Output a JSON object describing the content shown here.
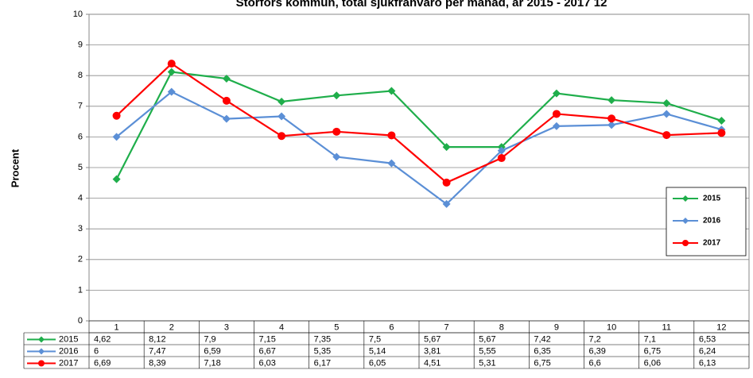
{
  "chart_data": {
    "type": "line",
    "title": "Storfors kommun, total sjukfrånvaro per månad, år 2015 - 2017 12",
    "y_label": "Procent",
    "categories": [
      "1",
      "2",
      "3",
      "4",
      "5",
      "6",
      "7",
      "8",
      "9",
      "10",
      "11",
      "12"
    ],
    "ylim": [
      0,
      10
    ],
    "yticks": [
      0,
      1,
      2,
      3,
      4,
      5,
      6,
      7,
      8,
      9,
      10
    ],
    "grid": true,
    "legend": "right",
    "series": [
      {
        "name": "2015",
        "color": "#1fae4b",
        "marker": "diamond",
        "values": [
          4.62,
          8.12,
          7.9,
          7.15,
          7.35,
          7.5,
          5.67,
          5.67,
          7.42,
          7.2,
          7.1,
          6.53
        ],
        "value_labels": [
          "4,62",
          "8,12",
          "7,9",
          "7,15",
          "7,35",
          "7,5",
          "5,67",
          "5,67",
          "7,42",
          "7,2",
          "7,1",
          "6,53"
        ]
      },
      {
        "name": "2016",
        "color": "#5b8fd6",
        "marker": "diamond",
        "values": [
          6,
          7.47,
          6.59,
          6.67,
          5.35,
          5.14,
          3.81,
          5.55,
          6.35,
          6.39,
          6.75,
          6.24
        ],
        "value_labels": [
          "6",
          "7,47",
          "6,59",
          "6,67",
          "5,35",
          "5,14",
          "3,81",
          "5,55",
          "6,35",
          "6,39",
          "6,75",
          "6,24"
        ]
      },
      {
        "name": "2017",
        "color": "#ff0000",
        "marker": "circle",
        "values": [
          6.69,
          8.39,
          7.18,
          6.03,
          6.17,
          6.05,
          4.51,
          5.31,
          6.75,
          6.6,
          6.06,
          6.13
        ],
        "value_labels": [
          "6,69",
          "8,39",
          "7,18",
          "6,03",
          "6,17",
          "6,05",
          "4,51",
          "5,31",
          "6,75",
          "6,6",
          "6,06",
          "6,13"
        ]
      }
    ]
  }
}
